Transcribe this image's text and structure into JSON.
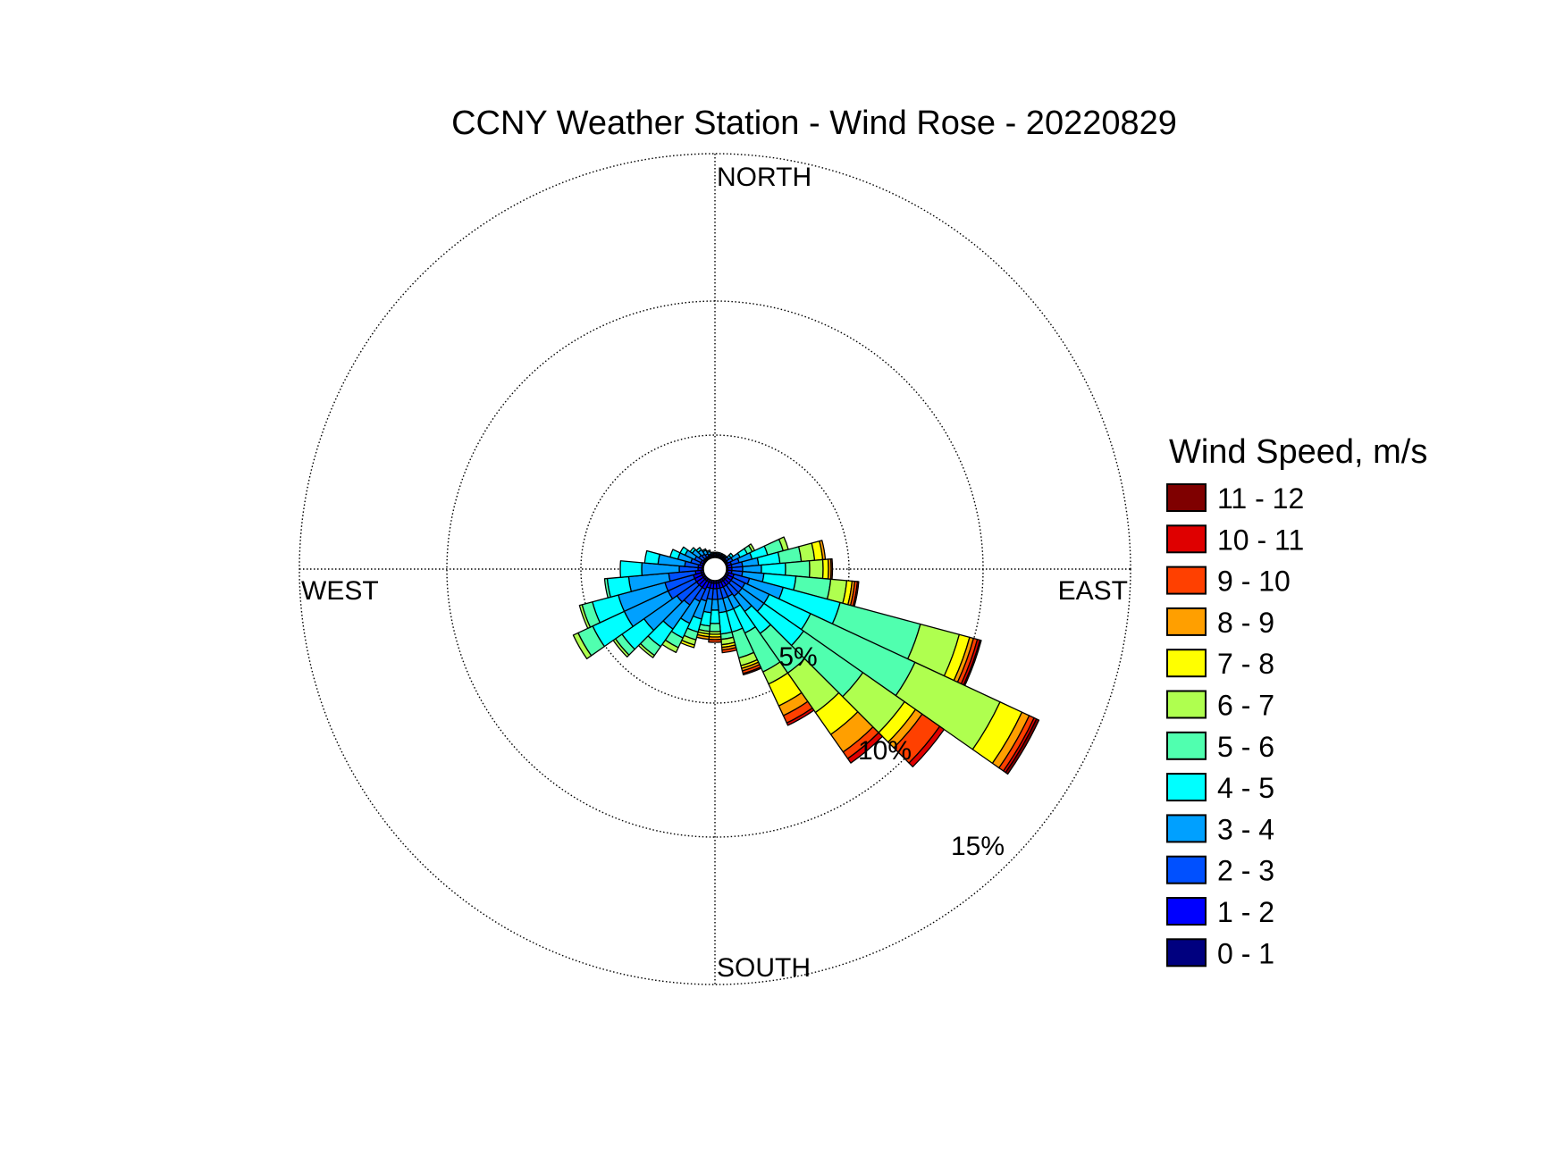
{
  "chart_data": {
    "type": "windrose",
    "title": "CCNY Weather Station - Wind Rose - 20220829",
    "direction_labels": {
      "north": "NORTH",
      "south": "SOUTH",
      "east": "EAST",
      "west": "WEST"
    },
    "radial_axis": {
      "unit": "%",
      "ticks": [
        5,
        10,
        15
      ],
      "tick_labels": [
        "5%",
        "10%",
        "15%"
      ],
      "max": 15,
      "grid": "dotted"
    },
    "legend": {
      "title": "Wind Speed, m/s",
      "placement": "right",
      "bins": [
        {
          "label": "11 - 12",
          "color": "#7f0000"
        },
        {
          "label": "10 - 11",
          "color": "#df0000"
        },
        {
          "label": "9 - 10",
          "color": "#ff4000"
        },
        {
          "label": "8 - 9",
          "color": "#ff9f00"
        },
        {
          "label": "7 - 8",
          "color": "#ffff00"
        },
        {
          "label": "6 - 7",
          "color": "#afff4f"
        },
        {
          "label": "5 - 6",
          "color": "#50ffaf"
        },
        {
          "label": "4 - 5",
          "color": "#00ffff"
        },
        {
          "label": "3 - 4",
          "color": "#00a0ff"
        },
        {
          "label": "2 - 3",
          "color": "#0050ff"
        },
        {
          "label": "1 - 2",
          "color": "#0000ff"
        },
        {
          "label": "0 - 1",
          "color": "#00007f"
        }
      ]
    },
    "sector_width_deg": 10,
    "speed_bin_order": "0-1, 1-2, 2-3, 3-4, 4-5, 5-6, 6-7, 7-8, 8-9, 9-10, 10-11, 11-12",
    "sectors": [
      {
        "direction_deg": 0,
        "cumulative": [
          0.05,
          0.1,
          0.15,
          0.18
        ]
      },
      {
        "direction_deg": 10,
        "cumulative": [
          0.05,
          0.1,
          0.15,
          0.2
        ]
      },
      {
        "direction_deg": 20,
        "cumulative": [
          0.05,
          0.1,
          0.15,
          0.2
        ]
      },
      {
        "direction_deg": 30,
        "cumulative": [
          0.05,
          0.1,
          0.15,
          0.2
        ]
      },
      {
        "direction_deg": 40,
        "cumulative": [
          0.05,
          0.1,
          0.15,
          0.2
        ]
      },
      {
        "direction_deg": 50,
        "cumulative": [
          0.05,
          0.1,
          0.2,
          0.3,
          0.4
        ]
      },
      {
        "direction_deg": 60,
        "cumulative": [
          0.05,
          0.1,
          0.3,
          0.6,
          0.9,
          1.1,
          1.2
        ]
      },
      {
        "direction_deg": 70,
        "cumulative": [
          0.05,
          0.2,
          0.5,
          1.0,
          1.6,
          2.2,
          2.4
        ]
      },
      {
        "direction_deg": 80,
        "cumulative": [
          0.05,
          0.2,
          0.6,
          1.2,
          2.0,
          2.8,
          3.3,
          3.6,
          3.7
        ]
      },
      {
        "direction_deg": 90,
        "cumulative": [
          0.05,
          0.2,
          0.6,
          1.3,
          2.2,
          3.1,
          3.6,
          3.8,
          3.9,
          3.95
        ]
      },
      {
        "direction_deg": 100,
        "cumulative": [
          0.05,
          0.2,
          0.6,
          1.4,
          2.6,
          3.9,
          4.5,
          4.7,
          4.8,
          4.9,
          4.95
        ]
      },
      {
        "direction_deg": 110,
        "cumulative": [
          0.1,
          0.3,
          0.9,
          2.2,
          4.4,
          7.5,
          9.0,
          9.4,
          9.55,
          9.7,
          9.8,
          9.85
        ]
      },
      {
        "direction_deg": 120,
        "cumulative": [
          0.1,
          0.3,
          0.8,
          1.8,
          3.5,
          7.8,
          11.3,
          12.2,
          12.5,
          12.7,
          12.8,
          12.9
        ]
      },
      {
        "direction_deg": 130,
        "cumulative": [
          0.1,
          0.3,
          0.8,
          1.8,
          3.6,
          6.3,
          8.2,
          8.7,
          9.0,
          9.8,
          10.0
        ]
      },
      {
        "direction_deg": 140,
        "cumulative": [
          0.1,
          0.3,
          0.8,
          1.5,
          2.5,
          4.3,
          6.1,
          7.1,
          7.9,
          8.2,
          8.4
        ]
      },
      {
        "direction_deg": 150,
        "cumulative": [
          0.1,
          0.3,
          0.7,
          1.2,
          2.2,
          3.8,
          4.3,
          5.2,
          5.6,
          5.9,
          6.0
        ]
      },
      {
        "direction_deg": 160,
        "cumulative": [
          0.1,
          0.3,
          0.7,
          1.2,
          2.0,
          3.0,
          3.3,
          3.4,
          3.5,
          3.6,
          3.65
        ]
      },
      {
        "direction_deg": 170,
        "cumulative": [
          0.1,
          0.3,
          0.7,
          1.2,
          2.0,
          2.2,
          2.4,
          2.5,
          2.6,
          2.7
        ]
      },
      {
        "direction_deg": 180,
        "cumulative": [
          0.1,
          0.3,
          0.7,
          1.1,
          1.6,
          1.9,
          2.0,
          2.1,
          2.2,
          2.3
        ]
      },
      {
        "direction_deg": 190,
        "cumulative": [
          0.1,
          0.3,
          0.7,
          1.2,
          1.7,
          1.9,
          2.0,
          2.1,
          2.2
        ]
      },
      {
        "direction_deg": 200,
        "cumulative": [
          0.1,
          0.3,
          0.8,
          1.5,
          2.0,
          2.3,
          2.5,
          2.6
        ]
      },
      {
        "direction_deg": 210,
        "cumulative": [
          0.1,
          0.4,
          0.9,
          1.8,
          2.4,
          2.8,
          3.0
        ]
      },
      {
        "direction_deg": 220,
        "cumulative": [
          0.1,
          0.4,
          1.2,
          2.3,
          3.1,
          3.5,
          3.6
        ]
      },
      {
        "direction_deg": 230,
        "cumulative": [
          0.1,
          0.4,
          1.3,
          2.8,
          3.8,
          4.1,
          4.2
        ]
      },
      {
        "direction_deg": 240,
        "cumulative": [
          0.1,
          0.4,
          1.5,
          3.3,
          4.6,
          5.2,
          5.4
        ]
      },
      {
        "direction_deg": 250,
        "cumulative": [
          0.1,
          0.4,
          1.5,
          3.3,
          4.3,
          4.7,
          4.8
        ]
      },
      {
        "direction_deg": 260,
        "cumulative": [
          0.1,
          0.3,
          1.3,
          2.8,
          3.6,
          3.7
        ]
      },
      {
        "direction_deg": 270,
        "cumulative": [
          0.05,
          0.2,
          0.9,
          2.3,
          3.1
        ]
      },
      {
        "direction_deg": 280,
        "cumulative": [
          0.05,
          0.2,
          0.7,
          1.7,
          2.2
        ]
      },
      {
        "direction_deg": 290,
        "cumulative": [
          0.05,
          0.15,
          0.5,
          1.0,
          1.3
        ]
      },
      {
        "direction_deg": 300,
        "cumulative": [
          0.05,
          0.15,
          0.4,
          0.8,
          1.0
        ]
      },
      {
        "direction_deg": 310,
        "cumulative": [
          0.05,
          0.1,
          0.3,
          0.6,
          0.7
        ]
      },
      {
        "direction_deg": 320,
        "cumulative": [
          0.05,
          0.1,
          0.25,
          0.45,
          0.55
        ]
      },
      {
        "direction_deg": 330,
        "cumulative": [
          0.05,
          0.1,
          0.2,
          0.35,
          0.4
        ]
      },
      {
        "direction_deg": 340,
        "cumulative": [
          0.05,
          0.1,
          0.15,
          0.25,
          0.3
        ]
      },
      {
        "direction_deg": 350,
        "cumulative": [
          0.05,
          0.1,
          0.15,
          0.2
        ]
      }
    ]
  }
}
